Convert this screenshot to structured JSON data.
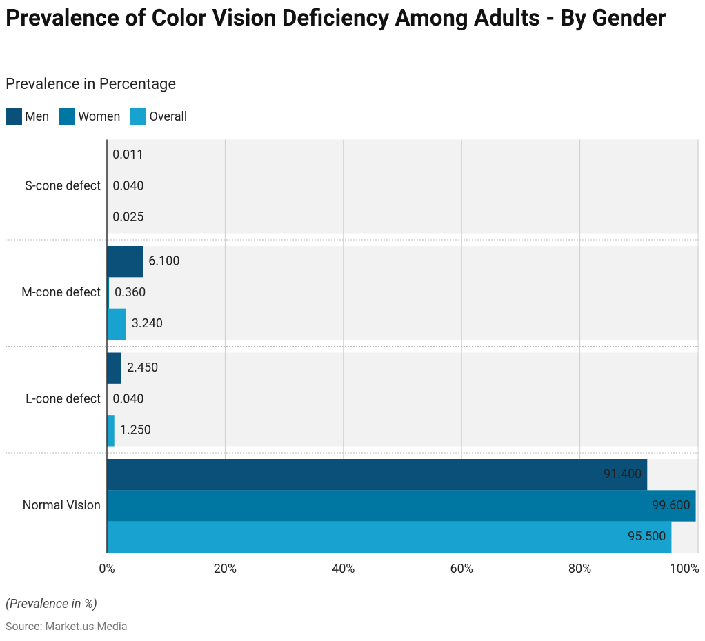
{
  "chart_data": {
    "type": "hbar",
    "title": "Prevalence of Color Vision Deficiency Among Adults - By Gender",
    "subtitle": "Prevalence in Percentage",
    "categories": [
      "S-cone defect",
      "M-cone defect",
      "L-cone defect",
      "Normal Vision"
    ],
    "series": [
      {
        "name": "Men",
        "color": "#0b5078",
        "values": [
          0.011,
          6.1,
          2.45,
          91.4
        ],
        "value_labels": [
          "0.011",
          "6.100",
          "2.450",
          "91.400"
        ]
      },
      {
        "name": "Women",
        "color": "#0077a2",
        "values": [
          0.04,
          0.36,
          0.04,
          99.6
        ],
        "value_labels": [
          "0.040",
          "0.360",
          "0.040",
          "99.600"
        ]
      },
      {
        "name": "Overall",
        "color": "#17a2cf",
        "values": [
          0.025,
          3.24,
          1.25,
          95.5
        ],
        "value_labels": [
          "0.025",
          "3.240",
          "1.250",
          "95.500"
        ]
      }
    ],
    "xlim": [
      0,
      100
    ],
    "xticks": [
      {
        "value": 0,
        "label": "0%"
      },
      {
        "value": 20,
        "label": "20%"
      },
      {
        "value": 40,
        "label": "40%"
      },
      {
        "value": 60,
        "label": "60%"
      },
      {
        "value": 80,
        "label": "80%"
      },
      {
        "value": 100,
        "label": "100%"
      }
    ],
    "grid": true,
    "note": "(Prevalence in %)",
    "source": "Source: Market.us Media"
  }
}
